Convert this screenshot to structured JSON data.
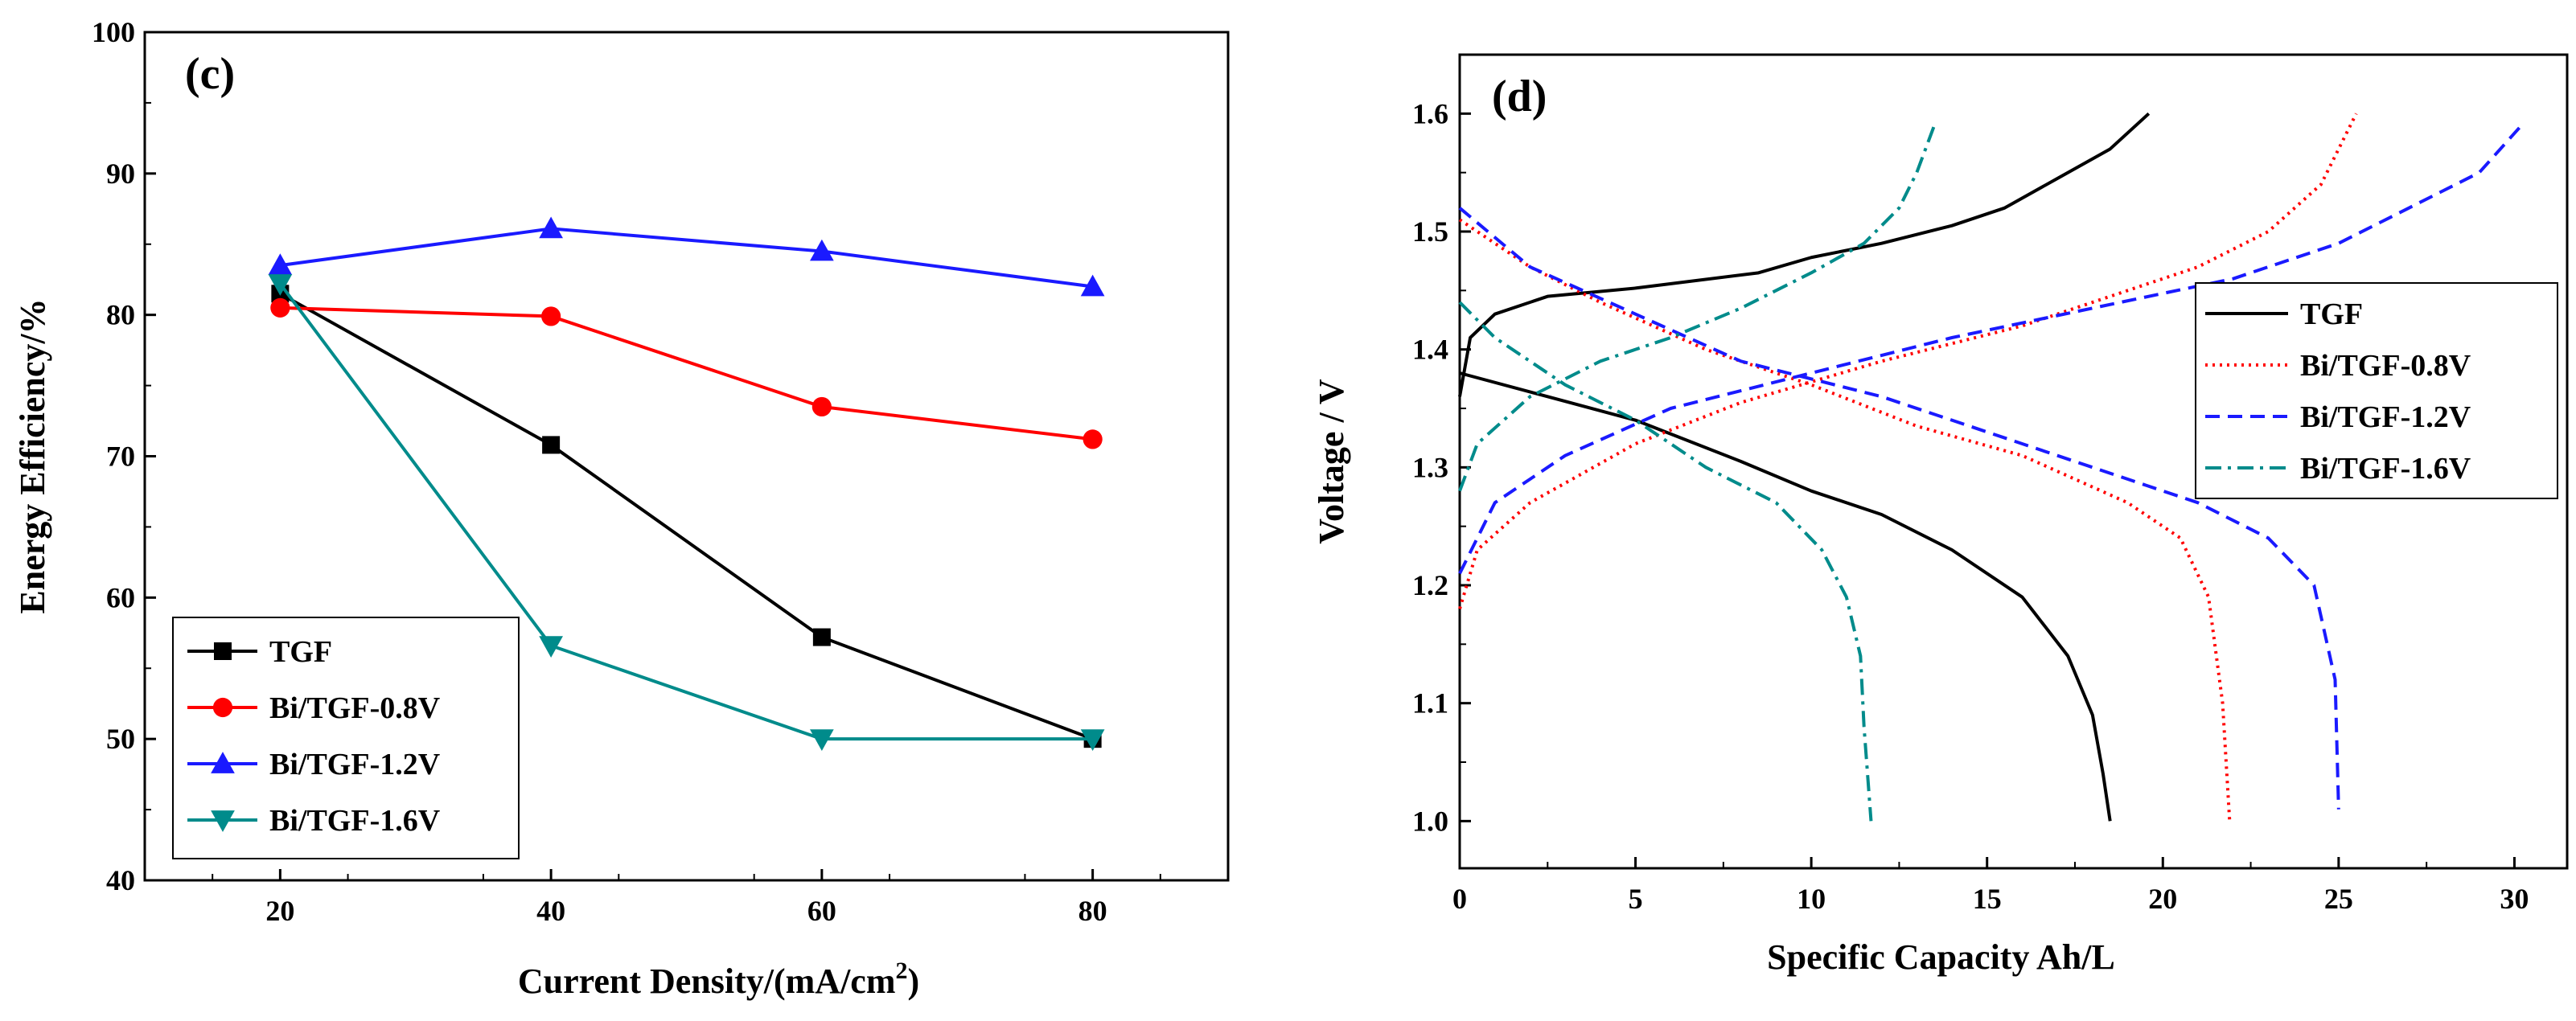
{
  "chart_data": [
    {
      "type": "line",
      "panel_label": "(c)",
      "xlabel": "Current Density/(mA/cm",
      "xlabel_sup": "2",
      "xlabel_end": ")",
      "ylabel": "Energy Efficiency/%",
      "xlim": [
        10,
        90
      ],
      "ylim": [
        40,
        100
      ],
      "xticks": [
        "20",
        "40",
        "60",
        "80"
      ],
      "yticks": [
        "40",
        "50",
        "60",
        "70",
        "80",
        "90",
        "100"
      ],
      "legend_position": "bottom-left",
      "x": [
        20,
        40,
        60,
        80
      ],
      "series": [
        {
          "name": "TGF",
          "color": "#000000",
          "marker": "square",
          "values": [
            81.5,
            70.8,
            57.2,
            50.0
          ]
        },
        {
          "name": "Bi/TGF-0.8V",
          "color": "#ff0000",
          "marker": "circle",
          "values": [
            80.5,
            79.9,
            73.5,
            71.2
          ]
        },
        {
          "name": "Bi/TGF-1.2V",
          "color": "#1a1aff",
          "marker": "triangle-up",
          "values": [
            83.5,
            86.1,
            84.5,
            82.0
          ]
        },
        {
          "name": "Bi/TGF-1.6V",
          "color": "#008b8b",
          "marker": "triangle-down",
          "values": [
            82.2,
            56.6,
            50.0,
            50.0
          ]
        }
      ]
    },
    {
      "type": "line",
      "panel_label": "(d)",
      "xlabel": "Specific Capacity Ah/L",
      "ylabel": "Voltage / V",
      "xlim": [
        0,
        31.5
      ],
      "ylim": [
        0.96,
        1.65
      ],
      "xticks": [
        "0",
        "5",
        "10",
        "15",
        "20",
        "25",
        "30"
      ],
      "yticks": [
        "1.0",
        "1.1",
        "1.2",
        "1.3",
        "1.4",
        "1.5",
        "1.6"
      ],
      "legend_position": "right",
      "series": [
        {
          "name": "TGF",
          "color": "#000000",
          "dash": "solid",
          "charge": [
            [
              0,
              1.36
            ],
            [
              0.3,
              1.41
            ],
            [
              1,
              1.43
            ],
            [
              2.5,
              1.445
            ],
            [
              5,
              1.452
            ],
            [
              8.5,
              1.465
            ],
            [
              10,
              1.478
            ],
            [
              12,
              1.49
            ],
            [
              14,
              1.505
            ],
            [
              15.5,
              1.52
            ],
            [
              17,
              1.545
            ],
            [
              18.5,
              1.57
            ],
            [
              19.6,
              1.6
            ]
          ],
          "discharge": [
            [
              0,
              1.38
            ],
            [
              2.5,
              1.36
            ],
            [
              5,
              1.34
            ],
            [
              8,
              1.305
            ],
            [
              10,
              1.28
            ],
            [
              12,
              1.26
            ],
            [
              14,
              1.23
            ],
            [
              16,
              1.19
            ],
            [
              17.3,
              1.14
            ],
            [
              18,
              1.09
            ],
            [
              18.3,
              1.04
            ],
            [
              18.5,
              1.0
            ]
          ]
        },
        {
          "name": "Bi/TGF-0.8V",
          "color": "#ff0000",
          "dash": "dotted",
          "charge": [
            [
              0,
              1.18
            ],
            [
              0.5,
              1.23
            ],
            [
              2,
              1.27
            ],
            [
              5,
              1.32
            ],
            [
              8,
              1.355
            ],
            [
              12,
              1.39
            ],
            [
              16,
              1.42
            ],
            [
              19,
              1.45
            ],
            [
              21,
              1.47
            ],
            [
              23,
              1.5
            ],
            [
              24.5,
              1.54
            ],
            [
              25.5,
              1.6
            ]
          ],
          "discharge": [
            [
              0,
              1.51
            ],
            [
              2,
              1.47
            ],
            [
              4,
              1.44
            ],
            [
              7,
              1.4
            ],
            [
              10,
              1.37
            ],
            [
              13,
              1.335
            ],
            [
              16,
              1.31
            ],
            [
              19,
              1.27
            ],
            [
              20.5,
              1.24
            ],
            [
              21.3,
              1.19
            ],
            [
              21.7,
              1.1
            ],
            [
              21.9,
              1.0
            ]
          ]
        },
        {
          "name": "Bi/TGF-1.2V",
          "color": "#1a1aff",
          "dash": "dashed",
          "charge": [
            [
              0,
              1.21
            ],
            [
              1,
              1.27
            ],
            [
              3,
              1.31
            ],
            [
              6,
              1.35
            ],
            [
              10,
              1.38
            ],
            [
              14,
              1.41
            ],
            [
              18,
              1.435
            ],
            [
              22,
              1.46
            ],
            [
              25,
              1.49
            ],
            [
              27,
              1.52
            ],
            [
              29,
              1.55
            ],
            [
              30.2,
              1.59
            ]
          ],
          "discharge": [
            [
              0,
              1.52
            ],
            [
              2,
              1.47
            ],
            [
              5,
              1.43
            ],
            [
              8,
              1.39
            ],
            [
              12,
              1.36
            ],
            [
              15,
              1.33
            ],
            [
              18,
              1.3
            ],
            [
              21,
              1.27
            ],
            [
              23,
              1.24
            ],
            [
              24.3,
              1.2
            ],
            [
              24.9,
              1.12
            ],
            [
              25,
              1.01
            ]
          ]
        },
        {
          "name": "Bi/TGF-1.6V",
          "color": "#008b8b",
          "dash": "dashdot",
          "charge": [
            [
              0,
              1.28
            ],
            [
              0.5,
              1.32
            ],
            [
              2,
              1.36
            ],
            [
              4,
              1.39
            ],
            [
              6,
              1.41
            ],
            [
              8,
              1.435
            ],
            [
              10,
              1.465
            ],
            [
              11.5,
              1.49
            ],
            [
              12.5,
              1.52
            ],
            [
              13,
              1.55
            ],
            [
              13.5,
              1.59
            ]
          ],
          "discharge": [
            [
              0,
              1.44
            ],
            [
              1,
              1.41
            ],
            [
              3,
              1.37
            ],
            [
              5,
              1.34
            ],
            [
              7,
              1.3
            ],
            [
              9,
              1.27
            ],
            [
              10.3,
              1.23
            ],
            [
              11,
              1.19
            ],
            [
              11.4,
              1.14
            ],
            [
              11.5,
              1.08
            ],
            [
              11.7,
              1.0
            ]
          ]
        }
      ]
    }
  ]
}
